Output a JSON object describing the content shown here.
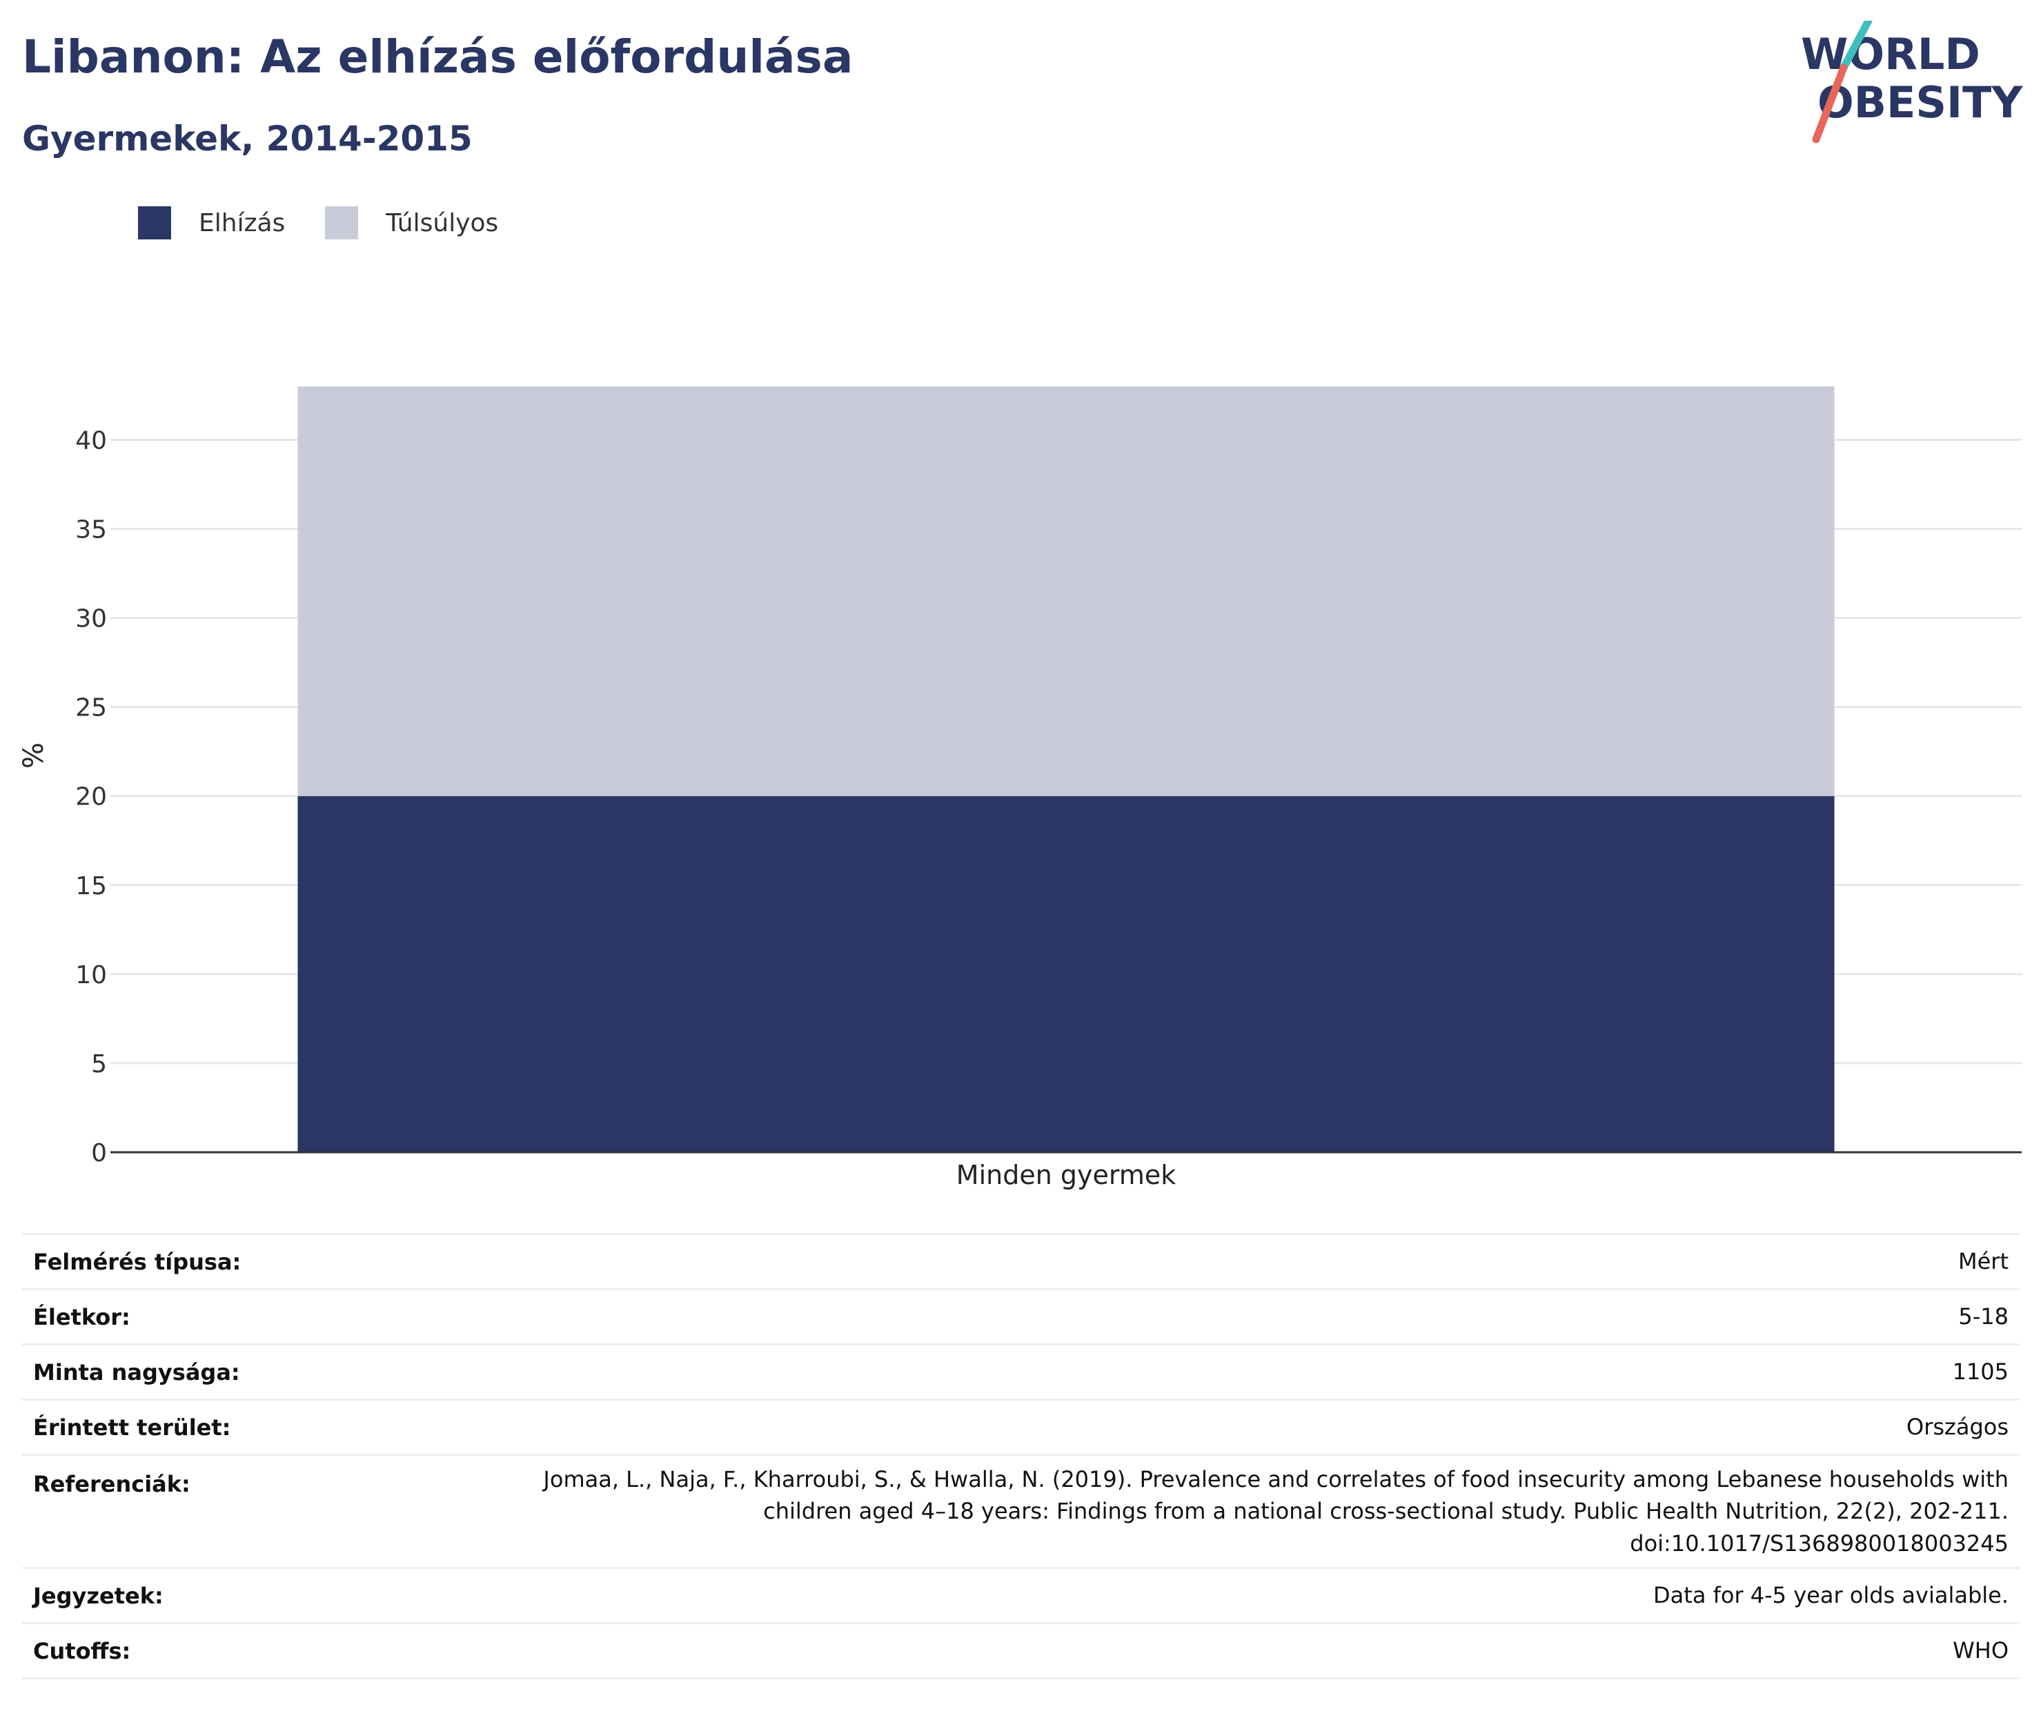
{
  "colors": {
    "obesity": "#2a3663",
    "overweight": "#c9ccd8",
    "title": "#2a3663",
    "logo_teal": "#3dbfbf",
    "logo_red": "#e8675a",
    "grid": "#e6e6e6",
    "axis": "#333333"
  },
  "logo": {
    "line1": "WORLD",
    "line2": "OBESITY"
  },
  "chart_data": {
    "type": "bar",
    "stacked": true,
    "title": "Libanon: Az elhízás előfordulása",
    "subtitle": "Gyermekek, 2014-2015",
    "xlabel": "",
    "ylabel": "%",
    "categories": [
      "Minden gyermek"
    ],
    "series": [
      {
        "name": "Elhízás",
        "values": [
          20
        ],
        "color_key": "obesity"
      },
      {
        "name": "Túlsúlyos",
        "values": [
          23
        ],
        "color_key": "overweight"
      }
    ],
    "ylim": [
      0,
      43
    ],
    "yticks": [
      0,
      5,
      10,
      15,
      20,
      25,
      30,
      35,
      40
    ],
    "grid": true,
    "legend_position": "top-left"
  },
  "info_table": [
    {
      "label": "Felmérés típusa:",
      "value": "Mért"
    },
    {
      "label": "Életkor:",
      "value": "5-18"
    },
    {
      "label": "Minta nagysága:",
      "value": "1105"
    },
    {
      "label": "Érintett terület:",
      "value": "Országos"
    },
    {
      "label": "Referenciák:",
      "value": "Jomaa, L., Naja, F., Kharroubi, S., & Hwalla, N. (2019). Prevalence and correlates of food insecurity among Lebanese households with\nchildren aged 4–18 years: Findings from a national cross-sectional study. Public Health Nutrition, 22(2), 202-211.\ndoi:10.1017/S1368980018003245"
    },
    {
      "label": "Jegyzetek:",
      "value": "Data for 4-5 year olds avialable."
    },
    {
      "label": "Cutoffs:",
      "value": "WHO"
    }
  ]
}
